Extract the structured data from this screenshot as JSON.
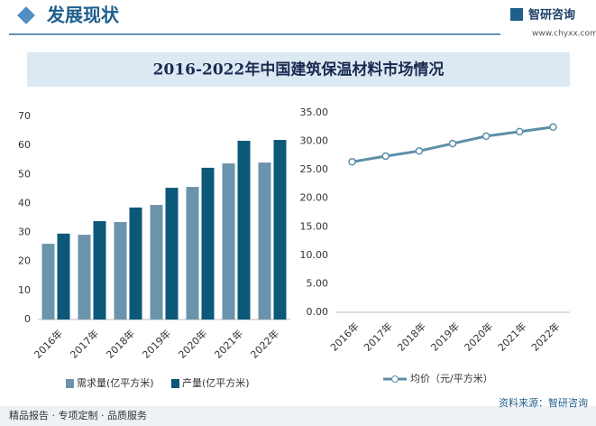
{
  "header": {
    "title": "发展现状",
    "brand": "智研咨询",
    "url": "www.chyxx.com"
  },
  "main_title": "2016-2022年中国建筑保温材料市场情况",
  "footer": {
    "left": "精品报告 · 专项定制 · 品质服务",
    "right": "资料来源：智研咨询"
  },
  "chart_data": [
    {
      "type": "bar",
      "categories": [
        "2016年",
        "2017年",
        "2018年",
        "2019年",
        "2020年",
        "2021年",
        "2022年"
      ],
      "series": [
        {
          "name": "需求量(亿平方米)",
          "color": "#6b93ab",
          "values": [
            26.1,
            29.2,
            33.6,
            39.5,
            45.7,
            53.8,
            54.1
          ]
        },
        {
          "name": "产量(亿平方米)",
          "color": "#0b5878",
          "values": [
            29.6,
            33.9,
            38.6,
            45.4,
            52.3,
            61.6,
            61.9
          ]
        }
      ],
      "ylim": [
        0,
        70
      ],
      "yticks": [
        0,
        10,
        20,
        30,
        40,
        50,
        60,
        70
      ],
      "legend": "bottom"
    },
    {
      "type": "line",
      "categories": [
        "2016年",
        "2017年",
        "2018年",
        "2019年",
        "2020年",
        "2021年",
        "2022年"
      ],
      "series": [
        {
          "name": "均价（元/平方米）",
          "color": "#5d8fa8",
          "values": [
            26.4,
            27.4,
            28.3,
            29.6,
            30.9,
            31.7,
            32.5
          ]
        }
      ],
      "ylim": [
        0,
        35
      ],
      "yticks": [
        {
          "value": 0,
          "label": "0.00"
        },
        {
          "value": 5,
          "label": "5.00"
        },
        {
          "value": 10,
          "label": "10.00"
        },
        {
          "value": 15,
          "label": "15.00"
        },
        {
          "value": 20,
          "label": "20.00"
        },
        {
          "value": 25,
          "label": "25.00"
        },
        {
          "value": 30,
          "label": "30.00"
        },
        {
          "value": 35,
          "label": "35.00"
        }
      ],
      "legend": "bottom"
    }
  ]
}
